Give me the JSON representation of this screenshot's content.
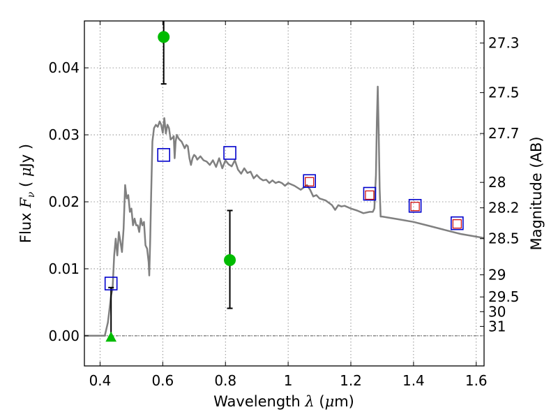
{
  "chart_data": {
    "type": "scatter",
    "xlabel_parts": [
      "Wavelength  ",
      "λ",
      " (",
      "μ",
      "m)"
    ],
    "ylabel_parts": [
      "Flux  ",
      "F",
      "ν",
      "  ( ",
      "μ",
      "Jy )"
    ],
    "ylabel_right": "Magnitude (AB)",
    "xlim": [
      0.35,
      1.625
    ],
    "ylim": [
      -0.0045,
      0.047
    ],
    "x_ticks": [
      0.4,
      0.6,
      0.8,
      1.0,
      1.2,
      1.4,
      1.6
    ],
    "x_tick_labels": [
      "0.4",
      "0.6",
      "0.8",
      "1",
      "1.2",
      "1.4",
      "1.6"
    ],
    "y_ticks": [
      0.0,
      0.01,
      0.02,
      0.03,
      0.04
    ],
    "y_tick_labels": [
      "0.00",
      "0.01",
      "0.02",
      "0.03",
      "0.04"
    ],
    "magnitude_ticks": [
      {
        "label": "27.3",
        "flux": 0.0437
      },
      {
        "label": "27.5",
        "flux": 0.0363
      },
      {
        "label": "27.7",
        "flux": 0.0302
      },
      {
        "label": "28",
        "flux": 0.0229
      },
      {
        "label": "28.2",
        "flux": 0.0191
      },
      {
        "label": "28.5",
        "flux": 0.0145
      },
      {
        "label": "29",
        "flux": 0.0091
      },
      {
        "label": "29.5",
        "flux": 0.0058
      },
      {
        "label": "30",
        "flux": 0.0036
      },
      {
        "label": "31",
        "flux": 0.0014
      }
    ],
    "grid": true,
    "series": [
      {
        "kind": "template_spectrum",
        "color": "#808080",
        "x": [
          0.35,
          0.415,
          0.42,
          0.425,
          0.43,
          0.435,
          0.44,
          0.445,
          0.45,
          0.455,
          0.46,
          0.465,
          0.47,
          0.475,
          0.48,
          0.485,
          0.49,
          0.495,
          0.5,
          0.505,
          0.51,
          0.515,
          0.52,
          0.525,
          0.53,
          0.535,
          0.54,
          0.545,
          0.55,
          0.555,
          0.557,
          0.56,
          0.563,
          0.567,
          0.572,
          0.578,
          0.584,
          0.59,
          0.595,
          0.6,
          0.605,
          0.61,
          0.615,
          0.62,
          0.625,
          0.63,
          0.635,
          0.638,
          0.641,
          0.645,
          0.65,
          0.655,
          0.66,
          0.665,
          0.67,
          0.675,
          0.68,
          0.685,
          0.69,
          0.695,
          0.7,
          0.705,
          0.71,
          0.72,
          0.73,
          0.74,
          0.75,
          0.76,
          0.77,
          0.78,
          0.79,
          0.8,
          0.81,
          0.82,
          0.83,
          0.84,
          0.85,
          0.86,
          0.87,
          0.88,
          0.89,
          0.9,
          0.91,
          0.92,
          0.93,
          0.94,
          0.95,
          0.96,
          0.97,
          0.98,
          0.99,
          1.0,
          1.02,
          1.04,
          1.06,
          1.07,
          1.08,
          1.09,
          1.1,
          1.12,
          1.14,
          1.15,
          1.16,
          1.17,
          1.18,
          1.2,
          1.22,
          1.24,
          1.26,
          1.27,
          1.275,
          1.28,
          1.283,
          1.286,
          1.289,
          1.292,
          1.295,
          1.3,
          1.35,
          1.4,
          1.45,
          1.5,
          1.55,
          1.6,
          1.625
        ],
        "y": [
          0.0,
          0.0,
          0.001,
          0.002,
          0.004,
          0.006,
          0.007,
          0.012,
          0.0145,
          0.012,
          0.0155,
          0.014,
          0.0125,
          0.016,
          0.0225,
          0.0205,
          0.021,
          0.0185,
          0.019,
          0.0165,
          0.0175,
          0.0165,
          0.0165,
          0.0155,
          0.0175,
          0.0165,
          0.017,
          0.0135,
          0.013,
          0.011,
          0.009,
          0.0145,
          0.021,
          0.029,
          0.031,
          0.0315,
          0.0312,
          0.032,
          0.0315,
          0.0303,
          0.0325,
          0.0302,
          0.0315,
          0.031,
          0.0293,
          0.0295,
          0.0298,
          0.0265,
          0.029,
          0.03,
          0.0295,
          0.0292,
          0.029,
          0.0285,
          0.028,
          0.0285,
          0.0283,
          0.0265,
          0.0255,
          0.0265,
          0.027,
          0.0268,
          0.0263,
          0.0268,
          0.0262,
          0.026,
          0.0255,
          0.0262,
          0.0252,
          0.0265,
          0.025,
          0.0262,
          0.0256,
          0.0253,
          0.0262,
          0.0248,
          0.0242,
          0.025,
          0.0243,
          0.0245,
          0.0235,
          0.024,
          0.0235,
          0.0232,
          0.0233,
          0.0228,
          0.0232,
          0.0228,
          0.023,
          0.0228,
          0.0224,
          0.0228,
          0.0224,
          0.0218,
          0.0225,
          0.0218,
          0.0208,
          0.021,
          0.0205,
          0.0202,
          0.0195,
          0.0188,
          0.0195,
          0.0193,
          0.0194,
          0.019,
          0.0187,
          0.0183,
          0.0185,
          0.0185,
          0.019,
          0.024,
          0.032,
          0.0372,
          0.03,
          0.022,
          0.0178,
          0.0178,
          0.0174,
          0.017,
          0.0164,
          0.0158,
          0.0152,
          0.0148,
          0.0146
        ]
      },
      {
        "kind": "model_photometry",
        "marker": "square",
        "edgecolor": "#0000cc",
        "x": [
          0.435,
          0.603,
          0.814,
          1.068,
          1.26,
          1.405,
          1.539
        ],
        "y": [
          0.0078,
          0.027,
          0.0273,
          0.0231,
          0.0212,
          0.0194,
          0.0168
        ]
      },
      {
        "kind": "model_photometry_inner",
        "marker": "square",
        "edgecolor": "#cc0000",
        "x": [
          1.068,
          1.26,
          1.405,
          1.539
        ],
        "y": [
          0.023,
          0.021,
          0.0193,
          0.0167
        ]
      },
      {
        "kind": "observed",
        "marker": "circle",
        "color": "#00bb00",
        "x": [
          0.603,
          0.814
        ],
        "y": [
          0.0446,
          0.0113
        ],
        "yerr_low": [
          0.0376,
          0.0041
        ],
        "yerr_high": [
          0.047,
          0.0187
        ]
      },
      {
        "kind": "observed_limit",
        "marker": "triangle",
        "color": "#00bb00",
        "x": [
          0.435
        ],
        "y": [
          -0.0002
        ],
        "yerr_low": [
          -0.0002
        ],
        "yerr_high": [
          0.0072
        ]
      }
    ]
  }
}
